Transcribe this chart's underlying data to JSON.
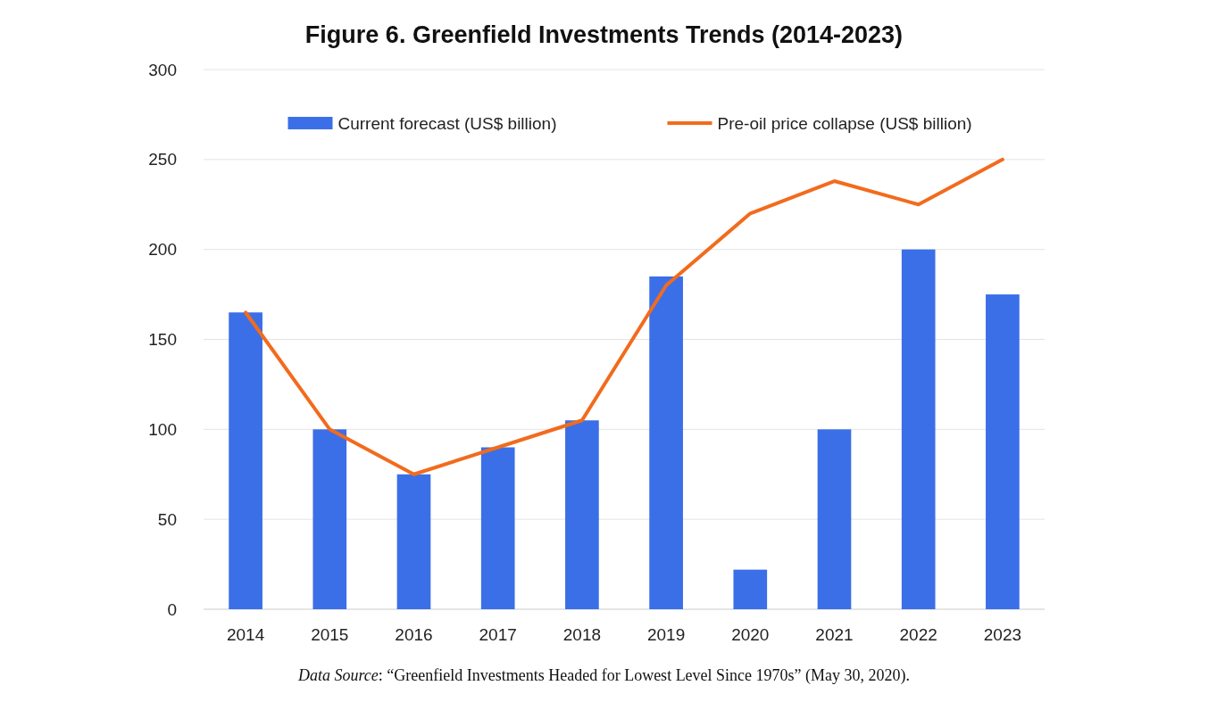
{
  "chart_data": {
    "type": "bar",
    "title": "Figure 6. Greenfield Investments Trends (2014-2023)",
    "categories": [
      "2014",
      "2015",
      "2016",
      "2017",
      "2018",
      "2019",
      "2020",
      "2021",
      "2022",
      "2023"
    ],
    "series": [
      {
        "name": "Current forecast (US$ billion)",
        "color": "#3b6fe8",
        "values": [
          165,
          100,
          75,
          90,
          105,
          185,
          22,
          100,
          200,
          175
        ]
      },
      {
        "name": "Pre-oil price collapse (US$ billion)",
        "type": "line",
        "color": "#f26b1d",
        "values": [
          165,
          100,
          75,
          90,
          105,
          180,
          220,
          238,
          225,
          250
        ]
      }
    ],
    "ylim": [
      0,
      300
    ],
    "yticks": [
      0,
      50,
      100,
      150,
      200,
      250,
      300
    ],
    "grid": "y",
    "legend": "top",
    "annotations": [
      "Data Source: “Greenfield Investments Headed for Lowest Level Since 1970s” (May 30, 2020)."
    ]
  }
}
